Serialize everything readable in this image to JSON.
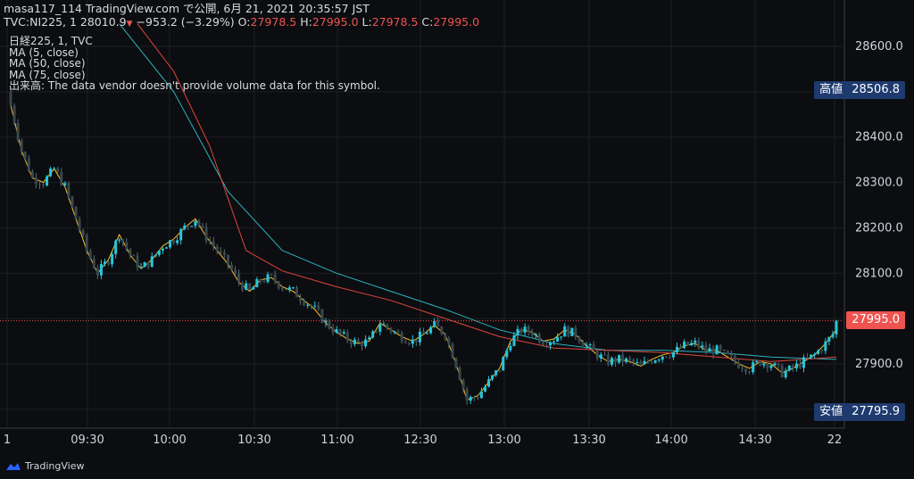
{
  "header": {
    "line1": "masa117_114 TradingView.com で公開, 6月 21, 2021 20:35:57 JST",
    "symbol": "TVC:NI225, 1",
    "last": "28010.9",
    "arrow": "▼",
    "change": "−953.2 (−3.29%)",
    "o_label": "O:",
    "o_value": "27978.5",
    "h_label": "H:",
    "h_value": "27995.0",
    "l_label": "L:",
    "l_value": "27978.5",
    "c_label": "C:",
    "c_value": "27995.0"
  },
  "legend": {
    "title": "日経225, 1, TVC",
    "ma5": "MA (5, close)",
    "ma50": "MA (50, close)",
    "ma75": "MA (75, close)",
    "volume_note": "出来高: The data vendor doesn't provide volume data for this symbol."
  },
  "labels": {
    "high_tag": "高値",
    "high_value": "28506.8",
    "low_tag": "安値",
    "low_value": "27795.9",
    "last_value": "27995.0"
  },
  "colors": {
    "background": "#0c0d10",
    "up": "#26c6da",
    "down": "#37474f",
    "ma5": "#f9c22e",
    "ma50": "#2ab3c0",
    "ma75": "#e0463a",
    "last": "#ef5350",
    "hilo_bg": "#1e3a6e"
  },
  "brand": "TradingView",
  "chart_data": {
    "type": "candlestick",
    "x_ticks": [
      "1",
      "09:30",
      "10:00",
      "10:30",
      "11:00",
      "12:30",
      "13:00",
      "13:30",
      "14:00",
      "14:30",
      "22"
    ],
    "y_ticks": [
      28600.0,
      28500.0,
      28400.0,
      28300.0,
      28200.0,
      28100.0,
      28000.0,
      27900.0,
      27800.0
    ],
    "ylim": [
      27780,
      28650
    ],
    "series": [
      {
        "name": "MA (5, close)",
        "points": [
          [
            0,
            28470
          ],
          [
            3,
            28370
          ],
          [
            6,
            28310
          ],
          [
            9,
            28300
          ],
          [
            12,
            28330
          ],
          [
            15,
            28290
          ],
          [
            18,
            28220
          ],
          [
            21,
            28150
          ],
          [
            24,
            28100
          ],
          [
            27,
            28130
          ],
          [
            30,
            28185
          ],
          [
            33,
            28140
          ],
          [
            36,
            28110
          ],
          [
            39,
            28130
          ],
          [
            42,
            28160
          ],
          [
            45,
            28175
          ],
          [
            48,
            28200
          ],
          [
            51,
            28220
          ],
          [
            54,
            28180
          ],
          [
            57,
            28150
          ],
          [
            60,
            28120
          ],
          [
            63,
            28080
          ],
          [
            66,
            28060
          ],
          [
            69,
            28085
          ],
          [
            72,
            28090
          ],
          [
            75,
            28070
          ],
          [
            78,
            28060
          ],
          [
            81,
            28040
          ],
          [
            84,
            28020
          ],
          [
            87,
            27990
          ],
          [
            90,
            27970
          ],
          [
            93,
            27955
          ],
          [
            96,
            27945
          ],
          [
            99,
            27950
          ],
          [
            102,
            27990
          ],
          [
            105,
            27975
          ],
          [
            108,
            27960
          ],
          [
            111,
            27950
          ],
          [
            114,
            27965
          ],
          [
            117,
            27985
          ],
          [
            120,
            27965
          ],
          [
            123,
            27900
          ],
          [
            126,
            27820
          ],
          [
            129,
            27830
          ],
          [
            132,
            27860
          ],
          [
            135,
            27890
          ],
          [
            138,
            27950
          ],
          [
            141,
            27975
          ],
          [
            144,
            27970
          ],
          [
            147,
            27950
          ],
          [
            150,
            27955
          ],
          [
            153,
            27975
          ],
          [
            156,
            27965
          ],
          [
            159,
            27940
          ],
          [
            162,
            27920
          ],
          [
            165,
            27905
          ],
          [
            168,
            27910
          ],
          [
            171,
            27905
          ],
          [
            174,
            27895
          ],
          [
            177,
            27910
          ],
          [
            180,
            27920
          ],
          [
            183,
            27925
          ],
          [
            186,
            27940
          ],
          [
            189,
            27945
          ],
          [
            192,
            27930
          ],
          [
            195,
            27930
          ],
          [
            198,
            27915
          ],
          [
            201,
            27900
          ],
          [
            204,
            27890
          ],
          [
            207,
            27905
          ],
          [
            210,
            27900
          ],
          [
            213,
            27880
          ],
          [
            216,
            27890
          ],
          [
            219,
            27905
          ],
          [
            222,
            27920
          ],
          [
            225,
            27945
          ],
          [
            228,
            27975
          ]
        ]
      },
      {
        "name": "MA (50, close)",
        "points": [
          [
            30,
            28650
          ],
          [
            45,
            28500
          ],
          [
            60,
            28280
          ],
          [
            75,
            28150
          ],
          [
            90,
            28100
          ],
          [
            105,
            28060
          ],
          [
            120,
            28020
          ],
          [
            135,
            27975
          ],
          [
            150,
            27945
          ],
          [
            165,
            27930
          ],
          [
            180,
            27930
          ],
          [
            195,
            27925
          ],
          [
            210,
            27915
          ],
          [
            228,
            27910
          ]
        ]
      },
      {
        "name": "MA (75, close)",
        "points": [
          [
            35,
            28650
          ],
          [
            45,
            28545
          ],
          [
            55,
            28380
          ],
          [
            65,
            28150
          ],
          [
            75,
            28105
          ],
          [
            90,
            28070
          ],
          [
            105,
            28040
          ],
          [
            120,
            28000
          ],
          [
            135,
            27960
          ],
          [
            150,
            27935
          ],
          [
            165,
            27930
          ],
          [
            180,
            27925
          ],
          [
            195,
            27915
          ],
          [
            210,
            27905
          ],
          [
            228,
            27915
          ]
        ]
      }
    ],
    "high": 28506.8,
    "low": 27795.9,
    "last": 27995.0,
    "grid": true
  }
}
